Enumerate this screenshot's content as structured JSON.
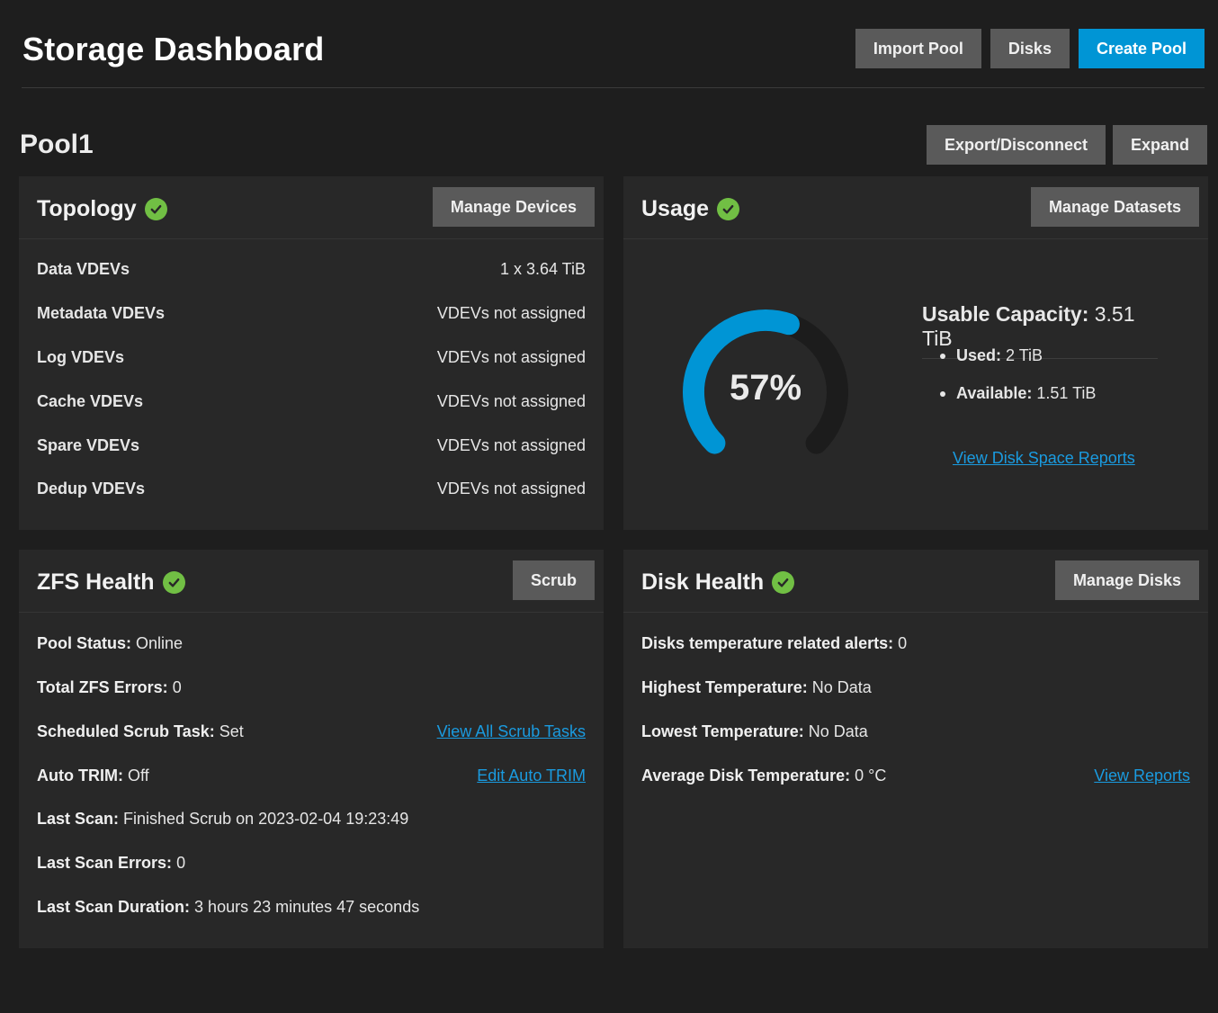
{
  "header": {
    "title": "Storage Dashboard",
    "buttons": {
      "import_pool": "Import Pool",
      "disks": "Disks",
      "create_pool": "Create Pool"
    }
  },
  "pool": {
    "name": "Pool1",
    "buttons": {
      "export": "Export/Disconnect",
      "expand": "Expand"
    }
  },
  "topology": {
    "title": "Topology",
    "button": "Manage Devices",
    "rows": [
      {
        "label": "Data VDEVs",
        "value": "1 x 3.64 TiB"
      },
      {
        "label": "Metadata VDEVs",
        "value": "VDEVs not assigned"
      },
      {
        "label": "Log VDEVs",
        "value": "VDEVs not assigned"
      },
      {
        "label": "Cache VDEVs",
        "value": "VDEVs not assigned"
      },
      {
        "label": "Spare VDEVs",
        "value": "VDEVs not assigned"
      },
      {
        "label": "Dedup VDEVs",
        "value": "VDEVs not assigned"
      }
    ]
  },
  "usage": {
    "title": "Usage",
    "button": "Manage Datasets",
    "percent": 57,
    "percent_label": "57%",
    "capacity_label": "Usable Capacity:",
    "capacity_value": "3.51 TiB",
    "used_label": "Used:",
    "used_value": "2 TiB",
    "available_label": "Available:",
    "available_value": "1.51 TiB",
    "report_link": "View Disk Space Reports"
  },
  "zfs": {
    "title": "ZFS Health",
    "button": "Scrub",
    "rows": [
      {
        "label": "Pool Status:",
        "value": "Online"
      },
      {
        "label": "Total ZFS Errors:",
        "value": "0"
      },
      {
        "label": "Scheduled Scrub Task:",
        "value": "Set",
        "link": "View All Scrub Tasks"
      },
      {
        "label": "Auto TRIM:",
        "value": "Off",
        "link": "Edit Auto TRIM"
      },
      {
        "label": "Last Scan:",
        "value": "Finished Scrub on 2023-02-04 19:23:49"
      },
      {
        "label": "Last Scan Errors:",
        "value": "0"
      },
      {
        "label": "Last Scan Duration:",
        "value": "3 hours 23 minutes 47 seconds"
      }
    ]
  },
  "disk_health": {
    "title": "Disk Health",
    "button": "Manage Disks",
    "rows": [
      {
        "label": "Disks temperature related alerts:",
        "value": "0"
      },
      {
        "label": "Highest Temperature:",
        "value": "No Data"
      },
      {
        "label": "Lowest Temperature:",
        "value": "No Data"
      },
      {
        "label": "Average Disk Temperature:",
        "value": "0 °C",
        "link": "View Reports"
      }
    ]
  },
  "colors": {
    "accent": "#0095d5",
    "ok_green": "#71bf44",
    "gauge_track": "#1c1c1c",
    "link": "#1a9be0"
  }
}
